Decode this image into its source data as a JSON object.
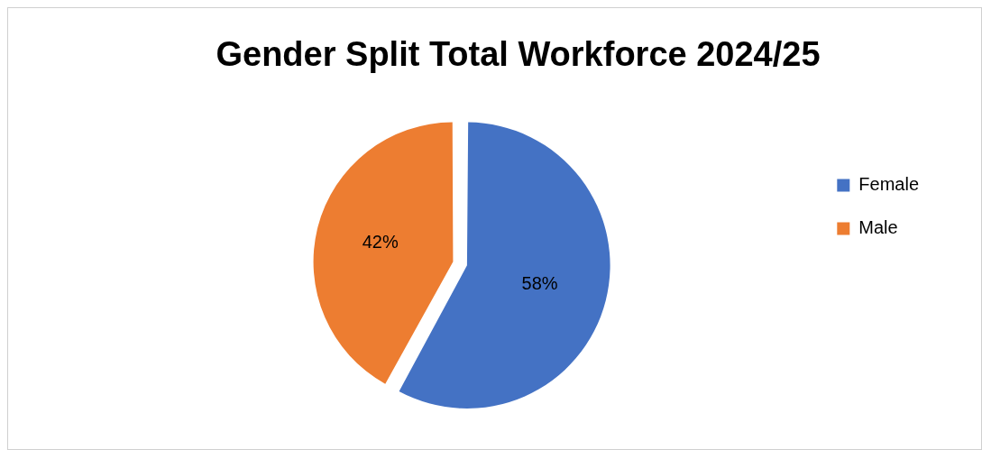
{
  "chart_data": {
    "type": "pie",
    "title": "Gender Split Total Workforce 2024/25",
    "categories": [
      "Female",
      "Male"
    ],
    "values": [
      58,
      42
    ],
    "colors": [
      "#4472c4",
      "#ed7d31"
    ],
    "value_labels": [
      "58%",
      "42%"
    ],
    "legend": "right"
  }
}
